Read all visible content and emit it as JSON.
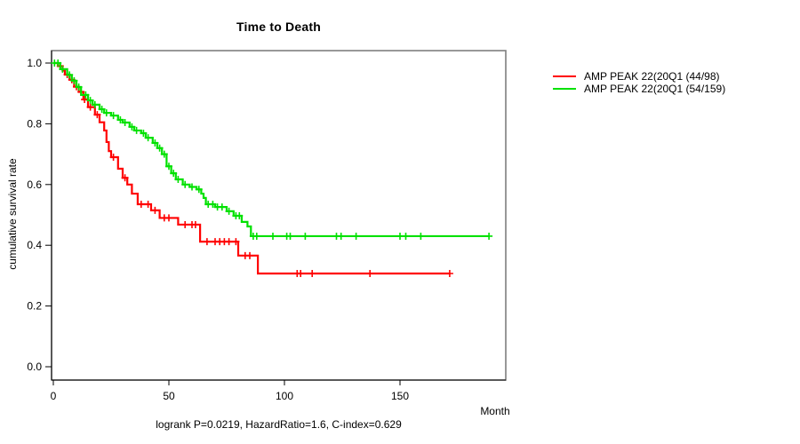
{
  "chart_data": {
    "type": "line",
    "subtype": "kaplan-meier-step",
    "title": "Time to Death",
    "xlabel": "Month",
    "ylabel": "cumulative survival rate",
    "caption": "logrank P=0.0219, HazardRatio=1.6, C-index=0.629",
    "grid": false,
    "legend_position": "right-outside",
    "xlim": [
      -1,
      196
    ],
    "ylim": [
      -0.04,
      1.04
    ],
    "xticks": [
      {
        "month": 0,
        "label": "0"
      },
      {
        "month": 50,
        "label": "50"
      },
      {
        "month": 100,
        "label": "100"
      },
      {
        "month": 150,
        "label": "150"
      }
    ],
    "yticks": [
      {
        "value": 0.0,
        "label": "0.0"
      },
      {
        "value": 0.2,
        "label": "0.2"
      },
      {
        "value": 0.4,
        "label": "0.4"
      },
      {
        "value": 0.6,
        "label": "0.6"
      },
      {
        "value": 0.8,
        "label": "0.8"
      },
      {
        "value": 1.0,
        "label": "1.0"
      }
    ],
    "series": [
      {
        "name": "AMP PEAK 22(20Q1 (44/98)",
        "events": 44,
        "n": 98,
        "color": "#ff0000",
        "end_month": 171.5,
        "steps": [
          [
            0,
            1.0
          ],
          [
            2,
            0.99
          ],
          [
            4,
            0.975
          ],
          [
            5,
            0.962
          ],
          [
            7,
            0.945
          ],
          [
            9,
            0.922
          ],
          [
            11,
            0.905
          ],
          [
            13,
            0.88
          ],
          [
            15,
            0.855
          ],
          [
            18,
            0.83
          ],
          [
            20,
            0.805
          ],
          [
            22,
            0.778
          ],
          [
            23,
            0.74
          ],
          [
            24,
            0.71
          ],
          [
            25,
            0.69
          ],
          [
            28,
            0.652
          ],
          [
            30,
            0.622
          ],
          [
            32,
            0.6
          ],
          [
            34,
            0.57
          ],
          [
            36.5,
            0.535
          ],
          [
            42.3,
            0.515
          ],
          [
            46,
            0.49
          ],
          [
            54,
            0.468
          ],
          [
            63.5,
            0.412
          ],
          [
            80,
            0.366
          ],
          [
            88.5,
            0.307
          ]
        ],
        "censor_months": [
          3,
          6,
          8,
          10,
          12,
          13.5,
          16,
          19,
          26,
          31,
          38,
          41,
          44,
          48,
          50,
          57,
          60,
          61.5,
          66.5,
          70,
          72,
          74,
          76,
          79,
          83,
          85,
          105.5,
          107,
          112,
          137,
          171.5
        ]
      },
      {
        "name": "AMP PEAK 22(20Q1 (54/159)",
        "events": 54,
        "n": 159,
        "color": "#00e100",
        "end_month": 188.5,
        "steps": [
          [
            0,
            1.0
          ],
          [
            3,
            0.98
          ],
          [
            6,
            0.961
          ],
          [
            8,
            0.942
          ],
          [
            10,
            0.921
          ],
          [
            12,
            0.895
          ],
          [
            15,
            0.877
          ],
          [
            17,
            0.863
          ],
          [
            20,
            0.848
          ],
          [
            22,
            0.836
          ],
          [
            25,
            0.827
          ],
          [
            28,
            0.813
          ],
          [
            30,
            0.804
          ],
          [
            33,
            0.79
          ],
          [
            35,
            0.778
          ],
          [
            38,
            0.769
          ],
          [
            40,
            0.754
          ],
          [
            43,
            0.737
          ],
          [
            45,
            0.72
          ],
          [
            47,
            0.7
          ],
          [
            49,
            0.66
          ],
          [
            51,
            0.637
          ],
          [
            53,
            0.617
          ],
          [
            56,
            0.6
          ],
          [
            59,
            0.592
          ],
          [
            62,
            0.584
          ],
          [
            64,
            0.57
          ],
          [
            65,
            0.556
          ],
          [
            66,
            0.535
          ],
          [
            70,
            0.526
          ],
          [
            75,
            0.512
          ],
          [
            78,
            0.497
          ],
          [
            81.5,
            0.477
          ],
          [
            84,
            0.462
          ],
          [
            85.5,
            0.43
          ]
        ],
        "censor_months": [
          0.5,
          2,
          4,
          7,
          9,
          11,
          14,
          16,
          18,
          21,
          23,
          26,
          29,
          31,
          34,
          36,
          39,
          41,
          44,
          46,
          48,
          50,
          52,
          54,
          57,
          60,
          63,
          67,
          69,
          71,
          73,
          76,
          79,
          80.5,
          86.5,
          88,
          95,
          101,
          102.5,
          109,
          122.5,
          124.5,
          131,
          150,
          152.5,
          159,
          188.5
        ]
      }
    ]
  }
}
